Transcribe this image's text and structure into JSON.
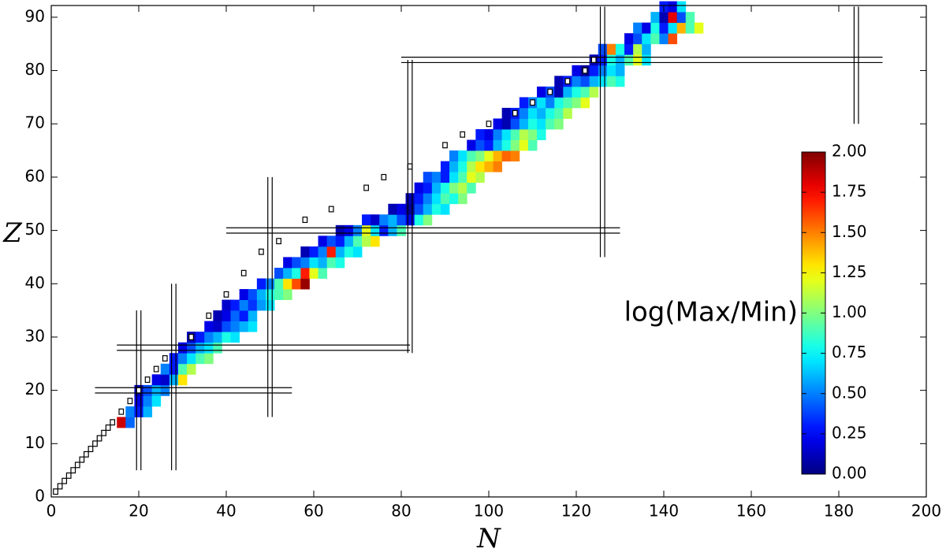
{
  "chart_data": {
    "type": "heatmap",
    "xlabel": "N",
    "ylabel": "Z",
    "xlim": [
      0,
      200
    ],
    "xticks": [
      0,
      20,
      40,
      60,
      80,
      100,
      120,
      140,
      160,
      180,
      200
    ],
    "ylim": [
      0,
      92.2
    ],
    "yticks": [
      0,
      10,
      20,
      30,
      40,
      50,
      60,
      70,
      80,
      90
    ],
    "colormap": "jet",
    "colorbar": {
      "label": "log(Max/Min)",
      "lim": [
        0,
        2
      ],
      "ticks": [
        {
          "value": 0,
          "label": "0.00"
        },
        {
          "value": 0.25,
          "label": "0.25"
        },
        {
          "value": 0.5,
          "label": "0.50"
        },
        {
          "value": 0.75,
          "label": "0.75"
        },
        {
          "value": 1,
          "label": "1.00"
        },
        {
          "value": 1.25,
          "label": "1.25"
        },
        {
          "value": 1.5,
          "label": "1.50"
        },
        {
          "value": 1.75,
          "label": "1.75"
        },
        {
          "value": 2,
          "label": "2.00"
        }
      ]
    },
    "rows": [
      {
        "z": 14,
        "n": [
          16,
          18
        ],
        "v": [
          1.85,
          0.45
        ]
      },
      {
        "z": 16,
        "n": [
          18,
          20,
          22
        ],
        "v": [
          0.5,
          0.3,
          0.6
        ]
      },
      {
        "z": 18,
        "n": [
          20,
          22,
          24
        ],
        "v": [
          0.2,
          0.5,
          0.7
        ]
      },
      {
        "z": 20,
        "n": [
          20,
          22,
          24,
          26
        ],
        "v": [
          0.1,
          0.4,
          0.6,
          0.5
        ]
      },
      {
        "z": 22,
        "n": [
          24,
          26,
          28,
          30
        ],
        "v": [
          0.2,
          0.15,
          0.6,
          1.3
        ]
      },
      {
        "z": 24,
        "n": [
          26,
          28,
          30,
          32
        ],
        "v": [
          0.5,
          0.3,
          0.9,
          1.1
        ]
      },
      {
        "z": 26,
        "n": [
          28,
          30,
          32,
          34,
          36
        ],
        "v": [
          0.3,
          0.5,
          0.7,
          0.9,
          1.0
        ]
      },
      {
        "z": 28,
        "n": [
          30,
          32,
          34,
          36,
          38
        ],
        "v": [
          0.2,
          0.4,
          0.6,
          0.7,
          0.9
        ]
      },
      {
        "z": 30,
        "n": [
          32,
          34,
          36,
          38,
          40,
          42
        ],
        "v": [
          0.1,
          0.3,
          0.5,
          0.6,
          0.8,
          0.7
        ]
      },
      {
        "z": 32,
        "n": [
          36,
          38,
          40,
          42,
          44,
          46
        ],
        "v": [
          0.2,
          0.15,
          0.4,
          0.5,
          0.6,
          0.7
        ]
      },
      {
        "z": 34,
        "n": [
          38,
          40,
          42,
          44,
          46
        ],
        "v": [
          0.1,
          0.2,
          0.45,
          0.3,
          0.6
        ]
      },
      {
        "z": 36,
        "n": [
          40,
          42,
          44,
          46,
          48,
          50
        ],
        "v": [
          0.15,
          0.3,
          0.5,
          0.35,
          0.55,
          0.7
        ]
      },
      {
        "z": 38,
        "n": [
          44,
          46,
          48,
          50,
          52,
          54
        ],
        "v": [
          0.2,
          0.4,
          0.6,
          0.8,
          0.9,
          1.0
        ]
      },
      {
        "z": 40,
        "n": [
          48,
          50,
          52,
          54,
          56,
          58
        ],
        "v": [
          0.3,
          0.5,
          0.9,
          1.3,
          1.6,
          1.95
        ]
      },
      {
        "z": 42,
        "n": [
          52,
          54,
          56,
          58,
          60,
          62
        ],
        "v": [
          0.4,
          0.6,
          0.8,
          1.7,
          1.2,
          0.9
        ]
      },
      {
        "z": 44,
        "n": [
          54,
          56,
          58,
          60,
          62,
          64,
          66
        ],
        "v": [
          0.2,
          0.4,
          0.5,
          0.7,
          0.6,
          0.9,
          0.8
        ]
      },
      {
        "z": 46,
        "n": [
          58,
          60,
          62,
          64,
          66,
          68,
          70
        ],
        "v": [
          0.1,
          0.3,
          0.5,
          1.7,
          0.6,
          0.8,
          0.7
        ]
      },
      {
        "z": 48,
        "n": [
          62,
          64,
          66,
          68,
          70,
          72,
          74
        ],
        "v": [
          0.2,
          0.4,
          0.3,
          0.6,
          0.9,
          1.1,
          1.3
        ]
      },
      {
        "z": 50,
        "n": [
          66,
          68,
          70,
          72,
          74,
          76,
          78,
          80
        ],
        "v": [
          0.1,
          0.2,
          0.5,
          1.2,
          0.7,
          0.3,
          0.6,
          0.9
        ]
      },
      {
        "z": 52,
        "n": [
          72,
          74,
          76,
          78,
          80,
          82,
          84,
          86
        ],
        "v": [
          0.3,
          0.15,
          0.5,
          0.6,
          0.4,
          0.2,
          0.8,
          1.0
        ]
      },
      {
        "z": 54,
        "n": [
          78,
          80,
          82,
          84,
          86,
          88,
          90
        ],
        "v": [
          0.1,
          0.2,
          0.05,
          0.4,
          0.6,
          0.8,
          0.7
        ]
      },
      {
        "z": 56,
        "n": [
          82,
          84,
          86,
          88,
          90,
          92,
          94
        ],
        "v": [
          0.1,
          0.3,
          0.5,
          0.7,
          0.9,
          0.8,
          1.0
        ]
      },
      {
        "z": 58,
        "n": [
          84,
          86,
          88,
          90,
          92,
          94,
          96
        ],
        "v": [
          0.2,
          0.3,
          0.6,
          0.8,
          1.0,
          1.1,
          0.9
        ]
      },
      {
        "z": 60,
        "n": [
          86,
          88,
          90,
          92,
          94,
          96,
          98
        ],
        "v": [
          0.4,
          0.5,
          0.3,
          0.7,
          0.9,
          1.2,
          1.1
        ]
      },
      {
        "z": 62,
        "n": [
          90,
          92,
          94,
          96,
          98,
          100,
          102
        ],
        "v": [
          0.3,
          0.6,
          0.8,
          1.1,
          1.3,
          1.4,
          1.5
        ]
      },
      {
        "z": 64,
        "n": [
          92,
          94,
          96,
          98,
          100,
          102,
          104,
          106
        ],
        "v": [
          0.5,
          0.7,
          0.9,
          1.0,
          1.2,
          1.4,
          1.55,
          1.5
        ]
      },
      {
        "z": 66,
        "n": [
          96,
          98,
          100,
          102,
          104,
          106,
          108,
          110
        ],
        "v": [
          0.2,
          0.4,
          0.3,
          0.6,
          0.8,
          1.0,
          1.2,
          0.9
        ]
      },
      {
        "z": 68,
        "n": [
          98,
          100,
          102,
          104,
          106,
          108,
          110,
          112
        ],
        "v": [
          0.3,
          0.2,
          0.5,
          0.7,
          0.9,
          1.1,
          1.0,
          0.8
        ]
      },
      {
        "z": 70,
        "n": [
          102,
          104,
          106,
          108,
          110,
          112,
          114,
          116
        ],
        "v": [
          0.2,
          0.1,
          0.4,
          0.6,
          0.8,
          0.7,
          0.9,
          1.0
        ]
      },
      {
        "z": 72,
        "n": [
          104,
          106,
          108,
          110,
          112,
          114,
          116,
          118
        ],
        "v": [
          0.1,
          0.3,
          0.5,
          0.7,
          0.6,
          0.8,
          0.9,
          1.1
        ]
      },
      {
        "z": 74,
        "n": [
          108,
          110,
          112,
          114,
          116,
          118,
          120,
          122
        ],
        "v": [
          0.3,
          0.5,
          0.7,
          0.5,
          0.8,
          0.9,
          1.0,
          1.2
        ]
      },
      {
        "z": 76,
        "n": [
          112,
          114,
          116,
          118,
          120,
          122,
          124
        ],
        "v": [
          0.2,
          0.4,
          0.1,
          0.6,
          0.8,
          0.9,
          1.1
        ]
      },
      {
        "z": 78,
        "n": [
          116,
          118,
          120,
          122,
          124,
          126,
          128,
          130
        ],
        "v": [
          0.1,
          0.3,
          0.5,
          0.4,
          0.6,
          0.7,
          0.9,
          0.8
        ]
      },
      {
        "z": 80,
        "n": [
          120,
          122,
          124,
          126,
          128,
          130
        ],
        "v": [
          0.2,
          0.05,
          0.3,
          0.5,
          0.7,
          0.6
        ]
      },
      {
        "z": 82,
        "n": [
          124,
          126,
          128,
          130,
          132,
          134,
          136
        ],
        "v": [
          0.1,
          0.3,
          0.8,
          0.6,
          0.9,
          1.2,
          0.7
        ]
      },
      {
        "z": 84,
        "n": [
          126,
          128,
          130,
          132,
          134,
          136
        ],
        "v": [
          0.4,
          1.5,
          0.8,
          0.3,
          1.1,
          0.6
        ]
      },
      {
        "z": 86,
        "n": [
          132,
          134,
          136,
          138,
          140,
          142
        ],
        "v": [
          0.2,
          0.4,
          0.7,
          0.9,
          0.5,
          1.6
        ]
      },
      {
        "z": 88,
        "n": [
          134,
          136,
          138,
          140,
          142,
          144,
          146,
          148
        ],
        "v": [
          0.5,
          0.2,
          0.8,
          0.3,
          0.7,
          1.4,
          0.9,
          1.2
        ]
      },
      {
        "z": 90,
        "n": [
          138,
          140,
          142,
          144,
          146
        ],
        "v": [
          0.6,
          0.1,
          1.8,
          0.4,
          0.9
        ]
      },
      {
        "z": 92,
        "n": [
          140,
          142,
          144
        ],
        "v": [
          0.3,
          0.2,
          0.7
        ]
      }
    ],
    "squares": {
      "n": [
        1,
        2,
        3,
        4,
        5,
        6,
        7,
        8,
        9,
        10,
        11,
        12,
        13,
        14,
        16,
        18,
        20,
        22,
        24,
        26,
        28,
        32,
        36,
        40,
        44,
        48,
        52,
        58,
        64,
        72,
        76,
        82,
        90,
        94,
        100,
        106,
        110,
        114,
        118,
        122,
        124
      ],
      "z": [
        1,
        2,
        3,
        4,
        5,
        6,
        7,
        8,
        9,
        10,
        11,
        12,
        13,
        14,
        16,
        18,
        20,
        22,
        24,
        26,
        28,
        30,
        34,
        38,
        42,
        46,
        48,
        52,
        54,
        58,
        60,
        62,
        66,
        68,
        70,
        72,
        74,
        76,
        78,
        80,
        82
      ]
    },
    "magic_lines": [
      {
        "axis": "Z",
        "value": 20,
        "from": 10,
        "to": 55
      },
      {
        "axis": "Z",
        "value": 28,
        "from": 15,
        "to": 82
      },
      {
        "axis": "Z",
        "value": 50,
        "from": 40,
        "to": 130
      },
      {
        "axis": "Z",
        "value": 82,
        "from": 80,
        "to": 190
      },
      {
        "axis": "N",
        "value": 20,
        "from": 5,
        "to": 35
      },
      {
        "axis": "N",
        "value": 28,
        "from": 5,
        "to": 40
      },
      {
        "axis": "N",
        "value": 50,
        "from": 15,
        "to": 60
      },
      {
        "axis": "N",
        "value": 82,
        "from": 27,
        "to": 82
      },
      {
        "axis": "N",
        "value": 126,
        "from": 45,
        "to": 92
      },
      {
        "axis": "N",
        "value": 184,
        "from": 70,
        "to": 92
      }
    ]
  }
}
